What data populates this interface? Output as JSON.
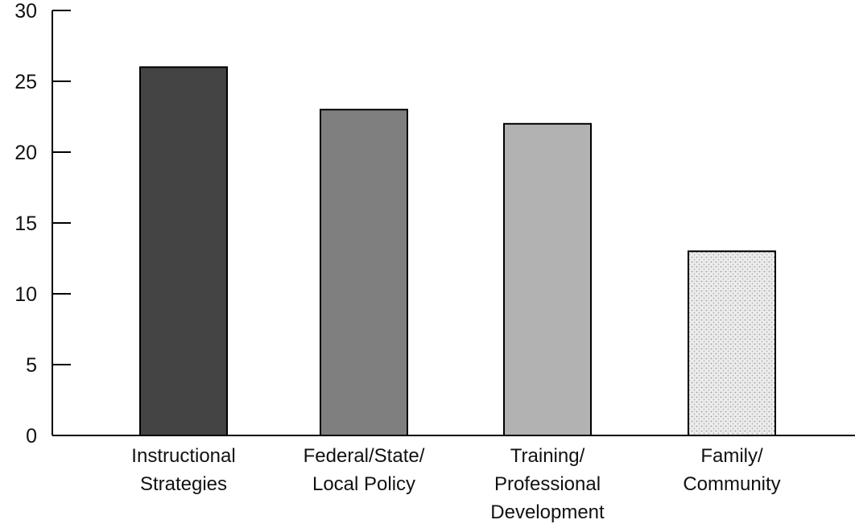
{
  "chart_data": {
    "type": "bar",
    "title": "",
    "xlabel": "",
    "ylabel": "",
    "ylim": [
      0,
      30
    ],
    "yticks": [
      0,
      5,
      10,
      15,
      20,
      25,
      30
    ],
    "grid": false,
    "categories": [
      "Instructional\nStrategies",
      "Federal/State/\nLocal Policy",
      "Training/\nProfessional\nDevelopment",
      "Family/\nCommunity"
    ],
    "values": [
      26,
      23,
      22,
      13
    ],
    "colors": [
      "#444444",
      "#7f7f7f",
      "#b2b2b2",
      "#e6e6e6"
    ],
    "fill_styles": [
      "solid",
      "solid",
      "solid",
      "stipple"
    ]
  }
}
